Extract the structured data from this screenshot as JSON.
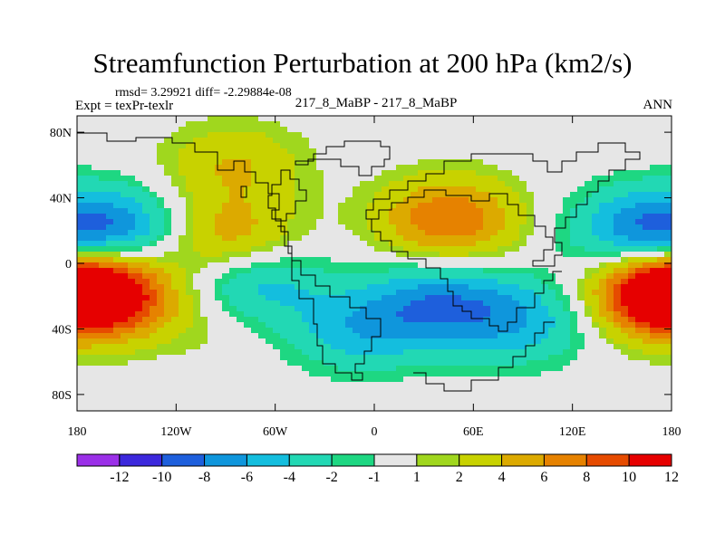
{
  "header": {
    "title": "Streamfunction Perturbation at 200 hPa (km2/s)",
    "stats": "rmsd= 3.29921  diff= -2.29884e-08",
    "expt": "Expt = texPr-texlr",
    "center_label": "217_8_MaBP - 217_8_MaBP",
    "season": "ANN"
  },
  "chart_data": {
    "type": "heatmap",
    "title": "Streamfunction Perturbation at 200 hPa (km2/s)",
    "xlabel": "",
    "ylabel": "",
    "xlim": [
      -180,
      180
    ],
    "ylim": [
      -90,
      90
    ],
    "x_ticks": [
      {
        "value": -180,
        "label": "180"
      },
      {
        "value": -120,
        "label": "120W"
      },
      {
        "value": -60,
        "label": "60W"
      },
      {
        "value": 0,
        "label": "0"
      },
      {
        "value": 60,
        "label": "60E"
      },
      {
        "value": 120,
        "label": "120E"
      },
      {
        "value": 180,
        "label": "180"
      }
    ],
    "y_ticks": [
      {
        "value": 80,
        "label": "80N"
      },
      {
        "value": 40,
        "label": "40N"
      },
      {
        "value": 0,
        "label": "0"
      },
      {
        "value": -40,
        "label": "40S"
      },
      {
        "value": -80,
        "label": "80S"
      }
    ],
    "colorbar": {
      "levels": [
        -12,
        -10,
        -8,
        -6,
        -4,
        -2,
        -1,
        1,
        2,
        4,
        6,
        8,
        10,
        12
      ],
      "labels": [
        "-12",
        "-10",
        "-8",
        "-6",
        "-4",
        "-2",
        "-1",
        "1",
        "2",
        "4",
        "6",
        "8",
        "10",
        "12"
      ],
      "colors": [
        "#9b30e8",
        "#3c28dc",
        "#1e5fdc",
        "#0f96dc",
        "#14bede",
        "#22d8b4",
        "#1ed782",
        "#e6e6e6",
        "#a0d71e",
        "#c8d200",
        "#dcaa00",
        "#e68200",
        "#e64b00",
        "#e60000"
      ]
    },
    "features": [
      {
        "name": "south-pacific-high",
        "lon": -168,
        "lat": -18,
        "value": 12
      },
      {
        "name": "south-america-east-high",
        "lon": -100,
        "lat": -30,
        "value": 2
      },
      {
        "name": "north-pacific-low",
        "lon": -155,
        "lat": 20,
        "value": -7
      },
      {
        "name": "central-america-high",
        "lon": -90,
        "lat": 15,
        "value": 6
      },
      {
        "name": "north-atlantic-high",
        "lon": -85,
        "lat": 60,
        "value": 4
      },
      {
        "name": "tropical-atlantic-low",
        "lon": -75,
        "lat": -12,
        "value": -6
      },
      {
        "name": "south-atlantic-low",
        "lon": -10,
        "lat": -40,
        "value": -5
      },
      {
        "name": "southern-africa-low",
        "lon": 40,
        "lat": -25,
        "value": -7
      },
      {
        "name": "south-indian-low",
        "lon": 90,
        "lat": -35,
        "value": -5
      },
      {
        "name": "asian-high",
        "lon": 45,
        "lat": 27,
        "value": 8
      },
      {
        "name": "north-pacific-west-low",
        "lon": 160,
        "lat": 20,
        "value": -7
      },
      {
        "name": "south-pacific-west-high",
        "lon": 175,
        "lat": -18,
        "value": 10
      }
    ]
  }
}
